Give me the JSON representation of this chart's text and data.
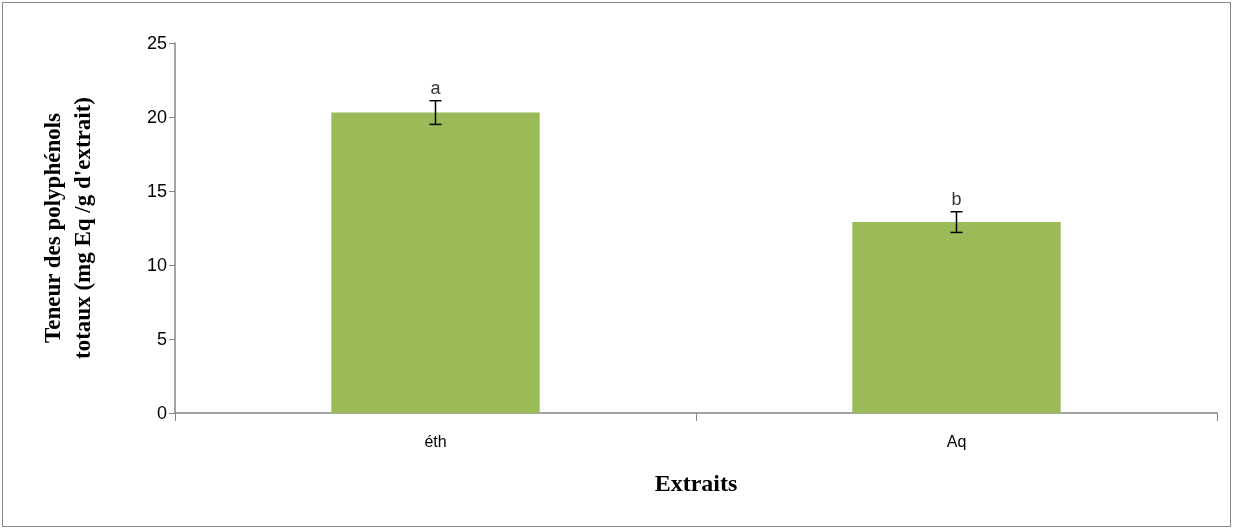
{
  "chart_data": {
    "type": "bar",
    "categories": [
      "éth",
      "Aq"
    ],
    "values": [
      20.3,
      12.9
    ],
    "errors": [
      0.8,
      0.7
    ],
    "color": "#9bbb59",
    "xlabel": "Extraits",
    "ylabel": "Teneur des polyphénols\ntotaux (mg Eq /g d'extrait)",
    "ylim": [
      0,
      25
    ],
    "yticks": [
      0,
      5,
      10,
      15,
      20,
      25
    ],
    "grid": false,
    "annotations": [
      {
        "text": "a",
        "x": "éth",
        "y": 21.1
      },
      {
        "text": "b",
        "x": "Aq",
        "y": 13.6
      }
    ]
  }
}
